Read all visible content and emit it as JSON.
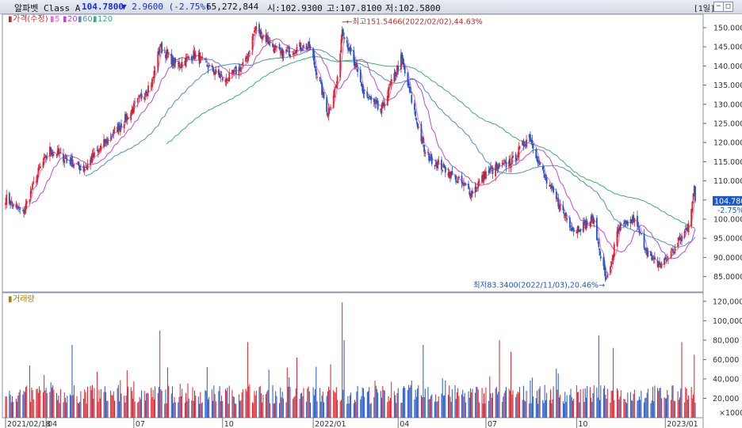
{
  "header": {
    "name": "알파벳 Class A",
    "price": "104.7800",
    "change": "▼ 2.9600 (-2.75%)",
    "volume": "65,272,844",
    "open": "시:102.9300",
    "high": "고:107.8100",
    "low": "저:102.5800",
    "period": "[1일]",
    "btn_minimize": "−",
    "btn_maximize": "□",
    "btn_close": "×"
  },
  "colors": {
    "up": "#e0202a",
    "down": "#1d58c9",
    "ma5": "#f06bd0",
    "ma20": "#c04ccd",
    "ma60": "#4a90c8",
    "ma120": "#38b077"
  },
  "chart_data": [
    {
      "type": "candlestick",
      "legend": [
        "가격(수정)",
        "5",
        "20",
        "60",
        "120"
      ],
      "yticks": [
        "150.0000",
        "145.0000",
        "140.0000",
        "135.0000",
        "130.0000",
        "125.0000",
        "120.0000",
        "115.0000",
        "110.0000",
        "105.0000",
        "100.0000",
        "95.0000",
        "90.0000",
        "85.0000"
      ],
      "ylim": [
        81,
        153.5
      ],
      "last_price_label": "104.7800",
      "last_change_label": "-2.75%",
      "annotation_high": "최고151.5466(2022/02/02),44.63%",
      "annotation_low": "최저83.3400(2022/11/03),20.46%",
      "keypoints": [
        [
          "2021-02-18",
          105.5
        ],
        [
          "2021-03-08",
          101.5
        ],
        [
          "2021-03-25",
          113
        ],
        [
          "2021-04-05",
          118
        ],
        [
          "2021-04-20",
          116
        ],
        [
          "2021-05-10",
          113
        ],
        [
          "2021-06-01",
          120
        ],
        [
          "2021-06-25",
          127
        ],
        [
          "2021-07-20",
          136
        ],
        [
          "2021-07-28",
          145
        ],
        [
          "2021-08-15",
          140
        ],
        [
          "2021-09-01",
          143
        ],
        [
          "2021-10-04",
          136
        ],
        [
          "2021-10-25",
          141
        ],
        [
          "2021-11-04",
          150
        ],
        [
          "2021-11-30",
          143
        ],
        [
          "2021-12-20",
          145
        ],
        [
          "2021-12-30",
          145
        ],
        [
          "2022-01-18",
          128
        ],
        [
          "2022-01-28",
          136
        ],
        [
          "2022-02-02",
          150
        ],
        [
          "2022-02-24",
          133
        ],
        [
          "2022-03-14",
          128
        ],
        [
          "2022-04-04",
          142
        ],
        [
          "2022-04-29",
          117
        ],
        [
          "2022-05-20",
          113
        ],
        [
          "2022-06-16",
          107
        ],
        [
          "2022-07-01",
          112
        ],
        [
          "2022-07-28",
          115
        ],
        [
          "2022-08-15",
          122
        ],
        [
          "2022-09-01",
          110
        ],
        [
          "2022-09-30",
          97
        ],
        [
          "2022-10-20",
          100
        ],
        [
          "2022-11-03",
          83.5
        ],
        [
          "2022-11-15",
          97
        ],
        [
          "2022-12-01",
          100
        ],
        [
          "2022-12-20",
          89
        ],
        [
          "2022-12-29",
          88
        ],
        [
          "2023-01-12",
          92
        ],
        [
          "2023-01-26",
          98
        ],
        [
          "2023-02-02",
          107.8
        ],
        [
          "2023-02-03",
          104.78
        ]
      ]
    },
    {
      "type": "bar",
      "legend": [
        "거래량"
      ],
      "yticks": [
        "120,000",
        "100,000",
        "80,000",
        "60,000",
        "40,000",
        "20,000"
      ],
      "unit_label": "×1000",
      "ylim": [
        0,
        124000
      ],
      "volume_base": 26000,
      "spikes": [
        [
          "2021-04-28",
          75000
        ],
        [
          "2021-07-28",
          90000
        ],
        [
          "2021-10-27",
          78000
        ],
        [
          "2021-12-17",
          62000
        ],
        [
          "2022-01-21",
          55000
        ],
        [
          "2022-02-02",
          119000
        ],
        [
          "2022-02-04",
          80000
        ],
        [
          "2022-04-27",
          75000
        ],
        [
          "2022-07-15",
          80000
        ],
        [
          "2022-07-27",
          68000
        ],
        [
          "2022-10-26",
          85000
        ],
        [
          "2022-11-10",
          72000
        ],
        [
          "2023-01-20",
          78000
        ],
        [
          "2023-02-02",
          65000
        ]
      ]
    }
  ],
  "xaxis": {
    "labels": [
      [
        "2021/02/18",
        "2021-02-18"
      ],
      [
        "04",
        "2021-04-01"
      ],
      [
        "07",
        "2021-07-01"
      ],
      [
        "10",
        "2021-10-01"
      ],
      [
        "2022/01",
        "2022-01-03"
      ],
      [
        "04",
        "2022-04-01"
      ],
      [
        "07",
        "2022-07-01"
      ],
      [
        "10",
        "2022-10-03"
      ],
      [
        "2023/01",
        "2023-01-03"
      ]
    ]
  }
}
